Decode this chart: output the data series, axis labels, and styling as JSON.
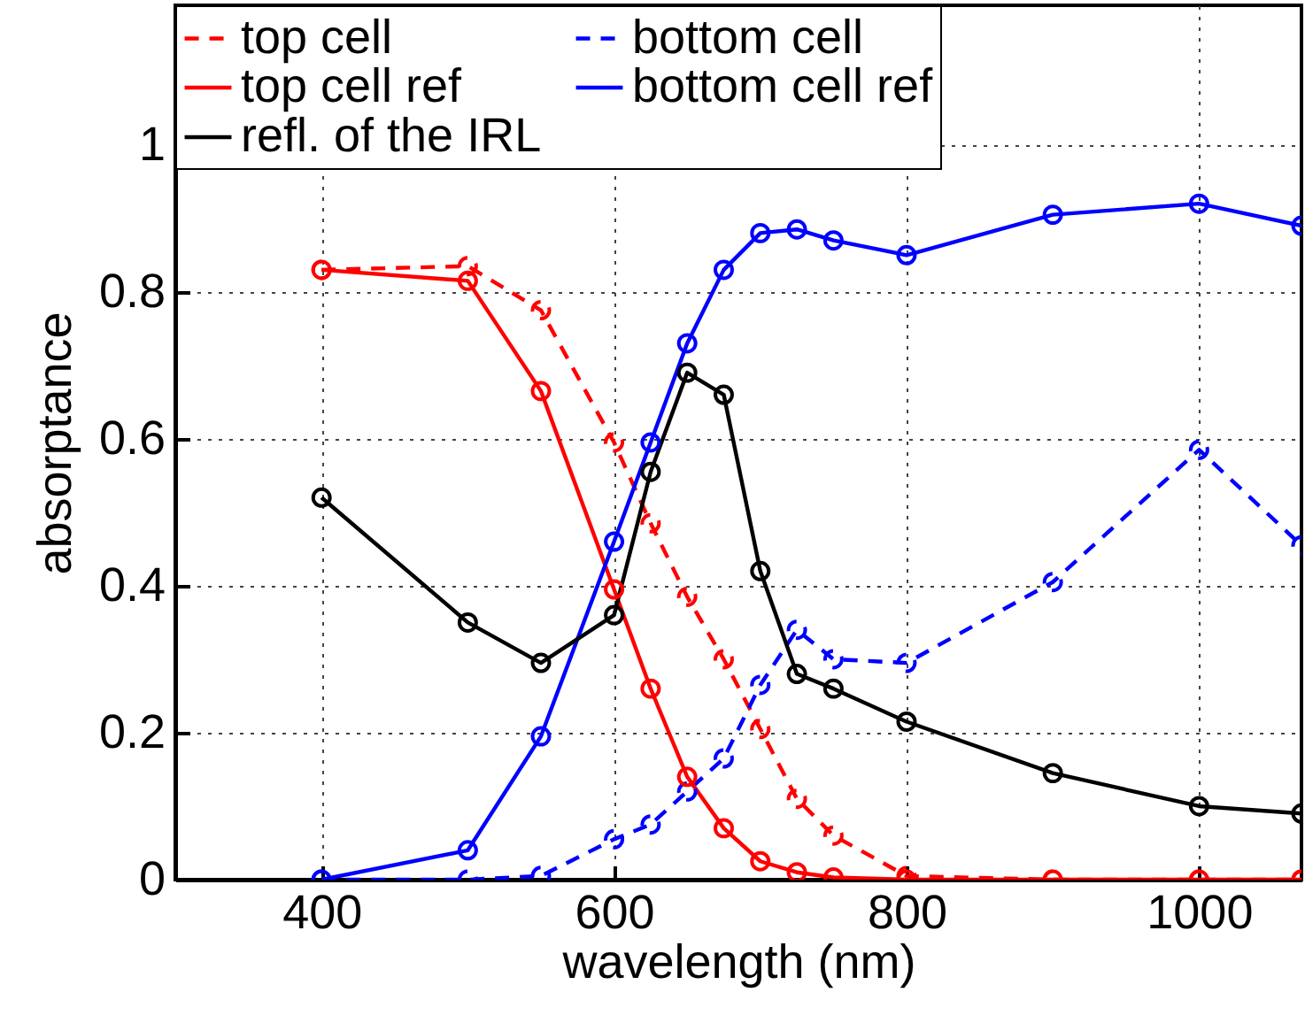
{
  "chart_data": {
    "type": "line",
    "xlabel": "wavelength (nm)",
    "ylabel": "absorptance",
    "x": [
      400,
      500,
      550,
      600,
      625,
      650,
      675,
      700,
      725,
      750,
      800,
      900,
      1000,
      1070
    ],
    "series": [
      {
        "name": "top cell",
        "color": "#ff0000",
        "line_style": "dashed",
        "values": [
          0.83,
          0.835,
          0.775,
          0.595,
          0.485,
          0.385,
          0.3,
          0.205,
          0.11,
          0.06,
          0.005,
          0,
          0,
          0
        ]
      },
      {
        "name": "bottom cell",
        "color": "#0000ff",
        "line_style": "dashed",
        "values": [
          0,
          0,
          0.005,
          0.055,
          0.075,
          0.12,
          0.165,
          0.265,
          0.34,
          0.3,
          0.295,
          0.405,
          0.585,
          0.455
        ]
      },
      {
        "name": "top cell ref",
        "color": "#ff0000",
        "line_style": "solid",
        "values": [
          0.83,
          0.815,
          0.665,
          0.395,
          0.26,
          0.14,
          0.07,
          0.025,
          0.01,
          0.003,
          0,
          0,
          0,
          0
        ]
      },
      {
        "name": "bottom cell ref",
        "color": "#0000ff",
        "line_style": "solid",
        "values": [
          0,
          0.04,
          0.195,
          0.46,
          0.595,
          0.73,
          0.83,
          0.88,
          0.885,
          0.87,
          0.85,
          0.905,
          0.92,
          0.89
        ]
      },
      {
        "name": "refl. of the IRL",
        "color": "#000000",
        "line_style": "solid",
        "values": [
          0.52,
          0.35,
          0.295,
          0.36,
          0.555,
          0.69,
          0.66,
          0.42,
          0.28,
          0.26,
          0.215,
          0.145,
          0.1,
          0.09
        ]
      }
    ],
    "xlim": [
      300,
      1070
    ],
    "xticks": [
      400,
      600,
      800,
      1000
    ],
    "ylim": [
      0,
      1.19
    ],
    "yticks": [
      0,
      0.2,
      0.4,
      0.6,
      0.8,
      1
    ],
    "grid": true,
    "legend": "top left",
    "marker": "circle"
  }
}
